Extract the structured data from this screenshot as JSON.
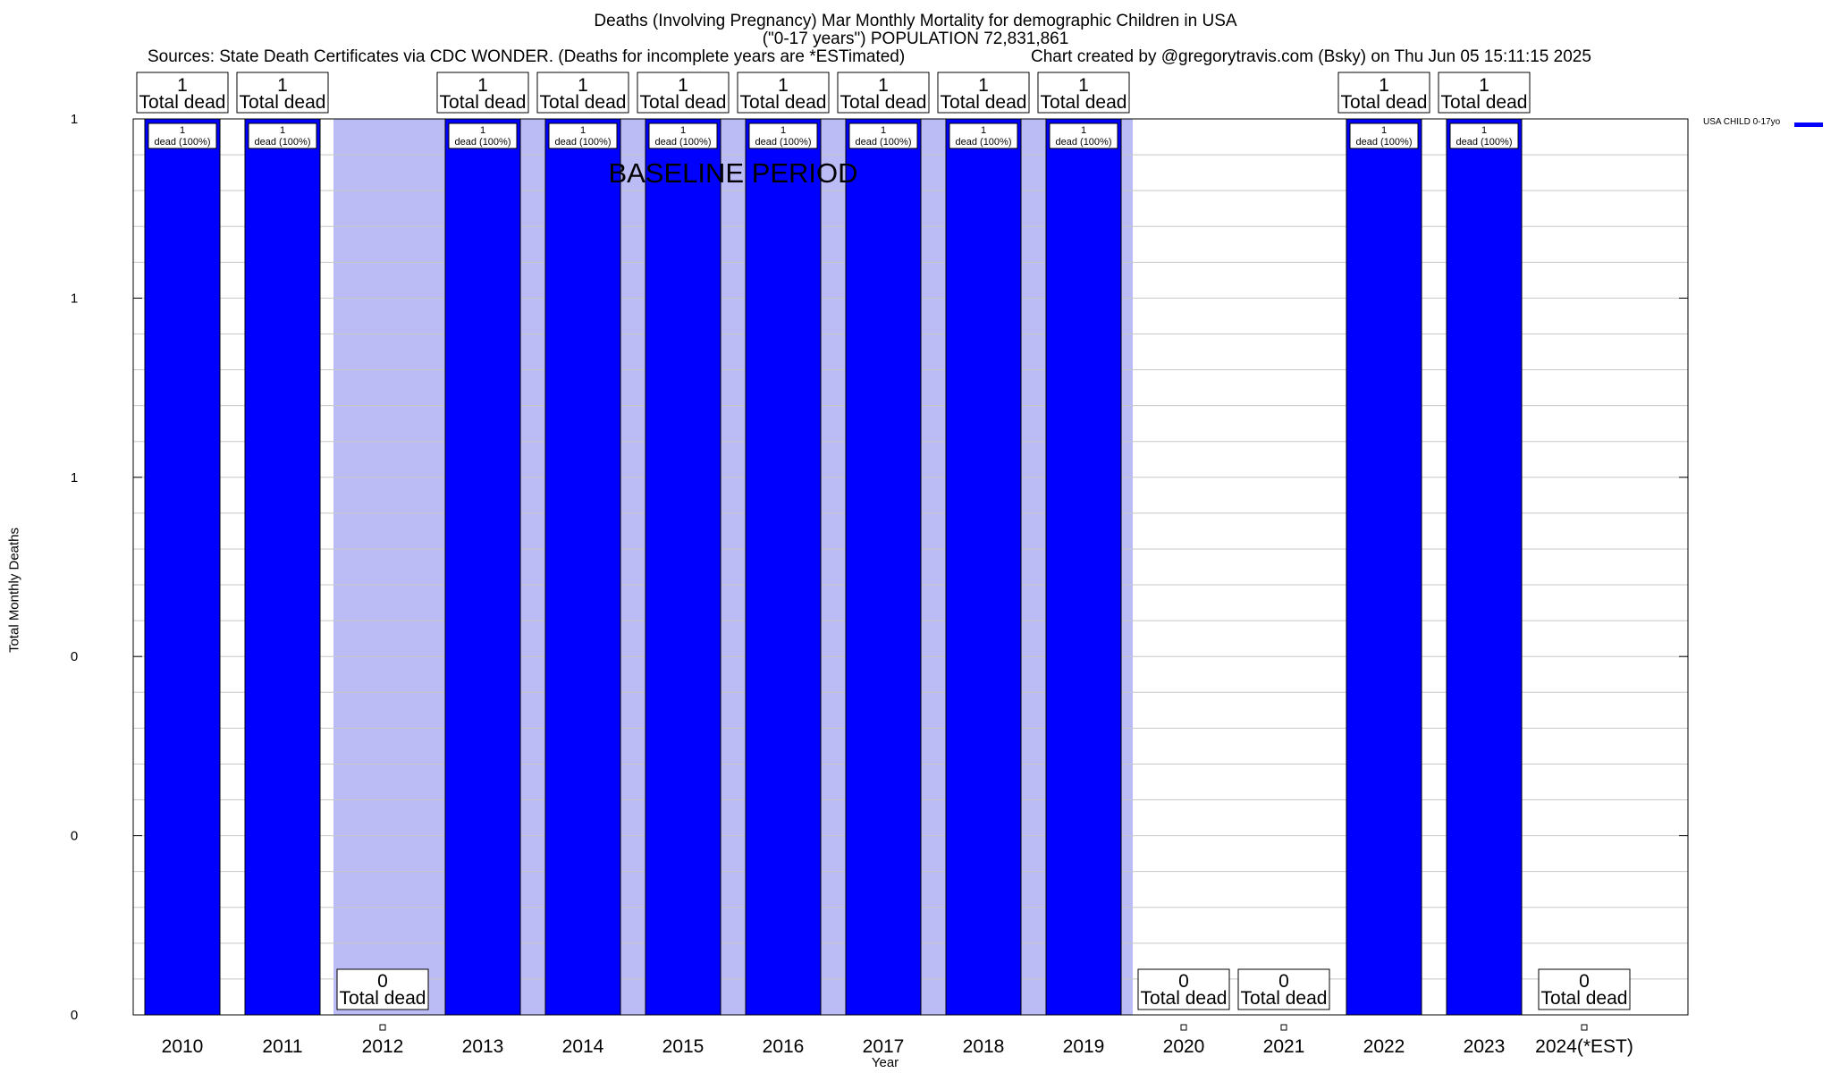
{
  "titles": {
    "line1": "Deaths (Involving Pregnancy) Mar Monthly Mortality for demographic Children in USA",
    "line2": "(\"0-17 years\") POPULATION 72,831,861",
    "sources": "Sources: State Death Certificates via CDC WONDER. (Deaths for incomplete years are *ESTimated)",
    "credit": "Chart created by @gregorytravis.com (Bsky) on Thu Jun 05 15:11:15 2025"
  },
  "legend": {
    "label": "USA CHILD 0-17yo",
    "color": "#0000ff"
  },
  "chart_data": {
    "type": "bar",
    "title": "Deaths (Involving Pregnancy) Mar Monthly Mortality for demographic Children in USA",
    "xlabel": "Year",
    "ylabel": "Total Monthly Deaths",
    "categories": [
      "2010",
      "2011",
      "2012",
      "2013",
      "2014",
      "2015",
      "2016",
      "2017",
      "2018",
      "2019",
      "2020",
      "2021",
      "2022",
      "2023",
      "2024(*EST)"
    ],
    "series": [
      {
        "name": "USA CHILD 0-17yo",
        "values": [
          1,
          1,
          0,
          1,
          1,
          1,
          1,
          1,
          1,
          1,
          0,
          0,
          1,
          1,
          0
        ],
        "color": "#0000ff"
      }
    ],
    "total_labels": [
      "Total dead",
      "Total dead",
      "Total dead",
      "Total dead",
      "Total dead",
      "Total dead",
      "Total dead",
      "Total dead",
      "Total dead",
      "Total dead",
      "Total dead",
      "Total dead",
      "Total dead",
      "Total dead",
      "Total dead"
    ],
    "bar_labels": [
      "dead (100%)",
      "dead (100%)",
      "",
      "dead (100%)",
      "dead (100%)",
      "dead (100%)",
      "dead (100%)",
      "dead (100%)",
      "dead (100%)",
      "dead (100%)",
      "",
      "",
      "dead (100%)",
      "dead (100%)",
      ""
    ],
    "ytick_labels": [
      "0",
      "0",
      "0",
      "1",
      "1",
      "1"
    ],
    "ylim": [
      0,
      1
    ],
    "grid": true,
    "baseline_period": {
      "label": "BASELINE PERIOD",
      "from": "2012",
      "to": "2019",
      "color": "#bbbbf5"
    },
    "legend_position": "top-right"
  }
}
